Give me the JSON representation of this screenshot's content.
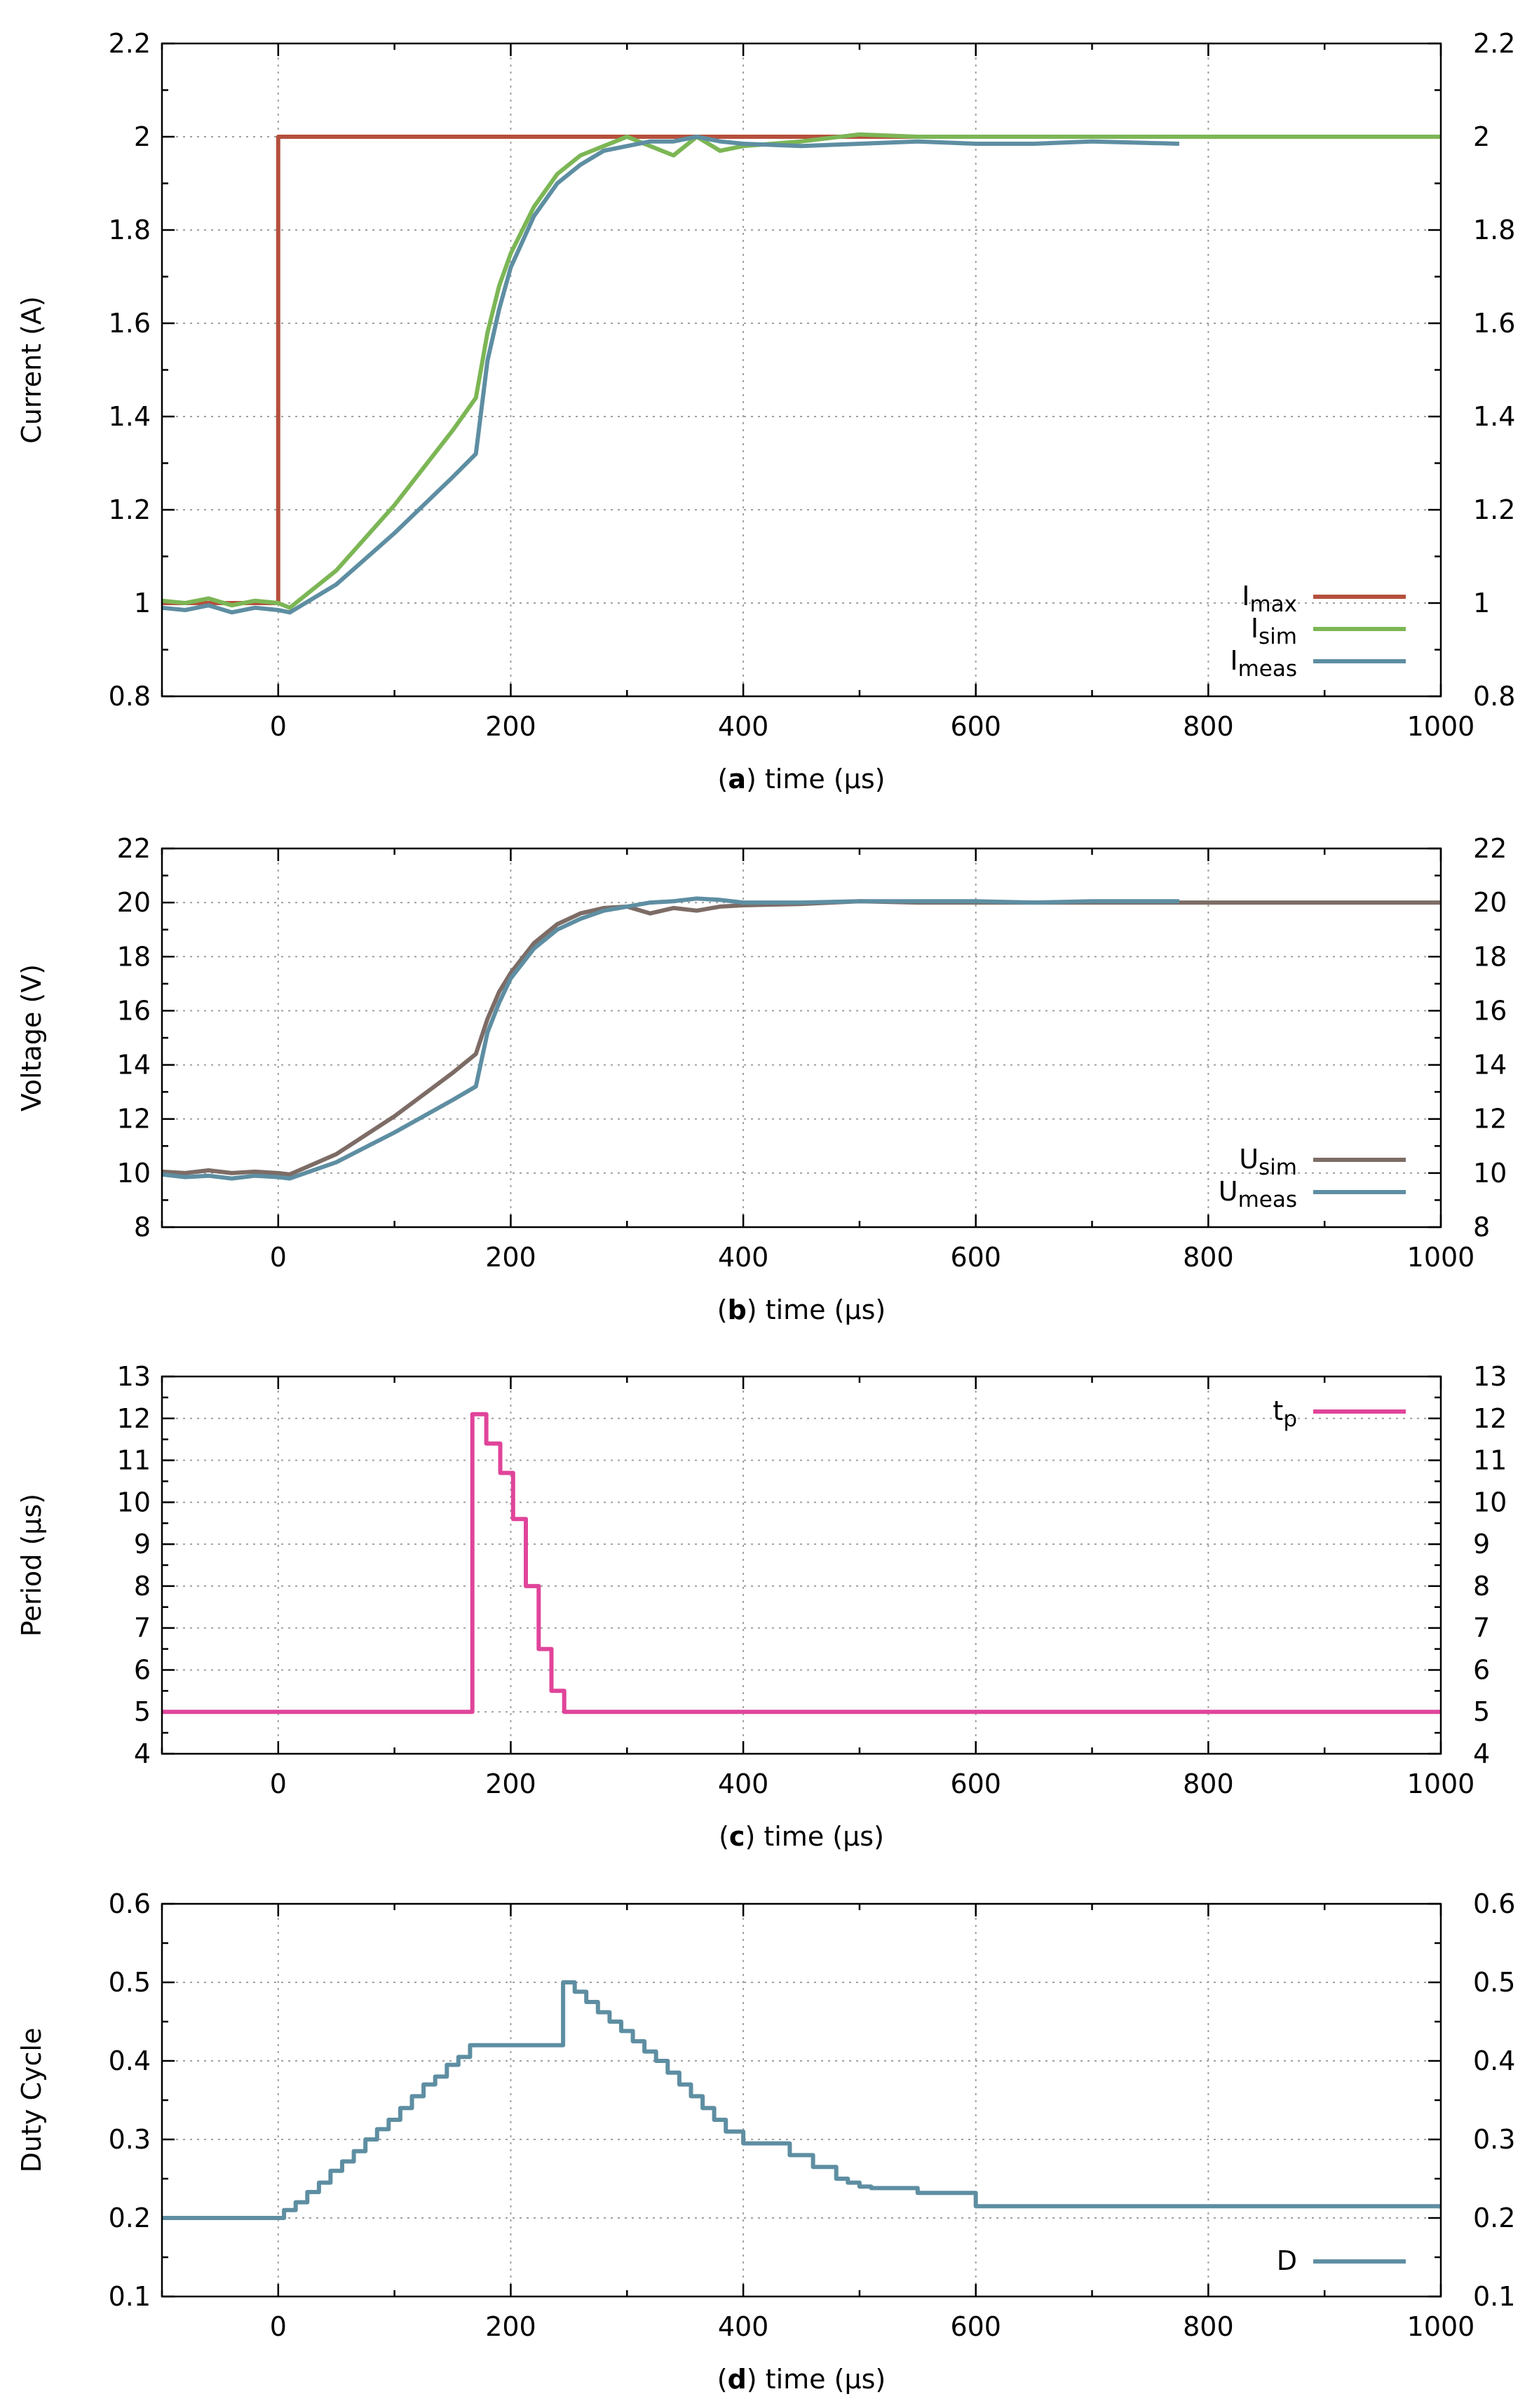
{
  "chart_data": [
    {
      "id": "a",
      "type": "line",
      "caption_letter": "a",
      "xlabel": " time (µs)",
      "ylabel": "Current (A)",
      "xlim": [
        -100,
        1000
      ],
      "ylim": [
        0.8,
        2.2
      ],
      "xticks": [
        0,
        200,
        400,
        600,
        800,
        1000
      ],
      "yticks": [
        0.8,
        1,
        1.2,
        1.4,
        1.6,
        1.8,
        2,
        2.2
      ],
      "ytick_labels": [
        "0.8",
        "1",
        "1.2",
        "1.4",
        "1.6",
        "1.8",
        "2",
        "2.2"
      ],
      "grid": true,
      "legend_position": "bottom-right",
      "series": [
        {
          "name": "I",
          "subscript": "max",
          "color": "#b5503c",
          "x": [
            -100,
            0,
            0,
            1000
          ],
          "y": [
            1.0,
            1.0,
            2.0,
            2.0
          ]
        },
        {
          "name": "I",
          "subscript": "sim",
          "color": "#7cb655",
          "x": [
            -100,
            -80,
            -60,
            -40,
            -20,
            0,
            10,
            50,
            100,
            150,
            170,
            180,
            190,
            200,
            220,
            240,
            260,
            280,
            300,
            320,
            340,
            360,
            380,
            400,
            450,
            500,
            550,
            600,
            700,
            800,
            900,
            1000
          ],
          "y": [
            1.005,
            1.0,
            1.01,
            0.995,
            1.005,
            1.0,
            0.99,
            1.07,
            1.21,
            1.37,
            1.44,
            1.58,
            1.68,
            1.75,
            1.85,
            1.92,
            1.96,
            1.98,
            2.0,
            1.98,
            1.96,
            2.0,
            1.97,
            1.98,
            1.99,
            2.005,
            2.0,
            2.0,
            2.0,
            2.0,
            2.0,
            2.0
          ]
        },
        {
          "name": "I",
          "subscript": "meas",
          "color": "#5e8ea2",
          "x": [
            -100,
            -80,
            -60,
            -40,
            -20,
            0,
            10,
            50,
            100,
            150,
            170,
            175,
            180,
            190,
            200,
            220,
            240,
            260,
            280,
            300,
            320,
            340,
            360,
            380,
            400,
            450,
            500,
            550,
            600,
            650,
            700,
            775
          ],
          "y": [
            0.99,
            0.985,
            0.995,
            0.98,
            0.99,
            0.985,
            0.98,
            1.04,
            1.15,
            1.27,
            1.32,
            1.42,
            1.52,
            1.63,
            1.72,
            1.83,
            1.9,
            1.94,
            1.97,
            1.98,
            1.99,
            1.99,
            2.0,
            1.99,
            1.985,
            1.98,
            1.985,
            1.99,
            1.985,
            1.985,
            1.99,
            1.985
          ]
        }
      ]
    },
    {
      "id": "b",
      "type": "line",
      "caption_letter": "b",
      "xlabel": " time (µs)",
      "ylabel": "Voltage (V)",
      "xlim": [
        -100,
        1000
      ],
      "ylim": [
        8,
        22
      ],
      "xticks": [
        0,
        200,
        400,
        600,
        800,
        1000
      ],
      "yticks": [
        8,
        10,
        12,
        14,
        16,
        18,
        20,
        22
      ],
      "ytick_labels": [
        "8",
        "10",
        "12",
        "14",
        "16",
        "18",
        "20",
        "22"
      ],
      "grid": true,
      "legend_position": "bottom-right",
      "series": [
        {
          "name": "U",
          "subscript": "sim",
          "color": "#7d6c66",
          "x": [
            -100,
            -80,
            -60,
            -40,
            -20,
            0,
            10,
            50,
            100,
            150,
            170,
            180,
            190,
            200,
            220,
            240,
            260,
            280,
            300,
            320,
            340,
            360,
            380,
            400,
            450,
            500,
            550,
            600,
            700,
            800,
            900,
            1000
          ],
          "y": [
            10.05,
            10.0,
            10.1,
            10.0,
            10.05,
            10.0,
            9.95,
            10.7,
            12.1,
            13.7,
            14.4,
            15.7,
            16.7,
            17.4,
            18.5,
            19.2,
            19.6,
            19.8,
            19.85,
            19.6,
            19.8,
            19.7,
            19.85,
            19.9,
            19.95,
            20.05,
            20.0,
            20.0,
            20.0,
            20.0,
            20.0,
            20.0
          ]
        },
        {
          "name": "U",
          "subscript": "meas",
          "color": "#5e8ea2",
          "x": [
            -100,
            -80,
            -60,
            -40,
            -20,
            0,
            10,
            50,
            100,
            150,
            170,
            175,
            180,
            190,
            200,
            220,
            240,
            260,
            280,
            300,
            320,
            340,
            360,
            380,
            400,
            450,
            500,
            550,
            600,
            650,
            700,
            775
          ],
          "y": [
            9.95,
            9.85,
            9.9,
            9.8,
            9.9,
            9.85,
            9.8,
            10.4,
            11.5,
            12.7,
            13.2,
            14.2,
            15.2,
            16.3,
            17.2,
            18.3,
            19.0,
            19.4,
            19.7,
            19.85,
            20.0,
            20.05,
            20.15,
            20.1,
            20.0,
            20.0,
            20.05,
            20.05,
            20.05,
            20.0,
            20.05,
            20.05
          ]
        }
      ]
    },
    {
      "id": "c",
      "type": "line",
      "caption_letter": "c",
      "xlabel": " time (µs)",
      "ylabel": "Period (µs)",
      "xlim": [
        -100,
        1000
      ],
      "ylim": [
        4,
        13
      ],
      "xticks": [
        0,
        200,
        400,
        600,
        800,
        1000
      ],
      "yticks": [
        4,
        5,
        6,
        7,
        8,
        9,
        10,
        11,
        12,
        13
      ],
      "ytick_labels": [
        "4",
        "5",
        "6",
        "7",
        "8",
        "9",
        "10",
        "11",
        "12",
        "13"
      ],
      "grid": true,
      "legend_position": "top-right",
      "series": [
        {
          "name": "t",
          "subscript": "p",
          "color": "#e0449a",
          "step": true,
          "x": [
            -100,
            167,
            179,
            191,
            202,
            213,
            224,
            235,
            246,
            1000
          ],
          "y": [
            5,
            12.1,
            11.4,
            10.7,
            9.6,
            8.0,
            6.5,
            5.5,
            5,
            5
          ]
        }
      ]
    },
    {
      "id": "d",
      "type": "line",
      "caption_letter": "d",
      "xlabel": " time (µs)",
      "ylabel": "Duty Cycle",
      "xlim": [
        -100,
        1000
      ],
      "ylim": [
        0.1,
        0.6
      ],
      "xticks": [
        0,
        200,
        400,
        600,
        800,
        1000
      ],
      "yticks": [
        0.1,
        0.2,
        0.3,
        0.4,
        0.5,
        0.6
      ],
      "ytick_labels": [
        "0.1",
        "0.2",
        "0.3",
        "0.4",
        "0.5",
        "0.6"
      ],
      "grid": true,
      "legend_position": "bottom-right",
      "series": [
        {
          "name": "D",
          "subscript": "",
          "color": "#5e8ea2",
          "step": true,
          "x": [
            -100,
            5,
            15,
            25,
            35,
            45,
            55,
            65,
            75,
            85,
            95,
            105,
            115,
            125,
            135,
            145,
            155,
            165,
            245,
            255,
            265,
            275,
            285,
            295,
            305,
            315,
            325,
            335,
            345,
            355,
            365,
            375,
            385,
            400,
            440,
            460,
            480,
            490,
            500,
            510,
            550,
            600,
            1000
          ],
          "y": [
            0.2,
            0.21,
            0.22,
            0.233,
            0.245,
            0.26,
            0.272,
            0.285,
            0.3,
            0.313,
            0.325,
            0.34,
            0.355,
            0.37,
            0.38,
            0.395,
            0.405,
            0.42,
            0.5,
            0.488,
            0.475,
            0.462,
            0.45,
            0.438,
            0.425,
            0.412,
            0.4,
            0.385,
            0.37,
            0.355,
            0.34,
            0.325,
            0.31,
            0.295,
            0.28,
            0.265,
            0.25,
            0.245,
            0.24,
            0.238,
            0.232,
            0.215,
            0.212
          ]
        }
      ]
    }
  ]
}
